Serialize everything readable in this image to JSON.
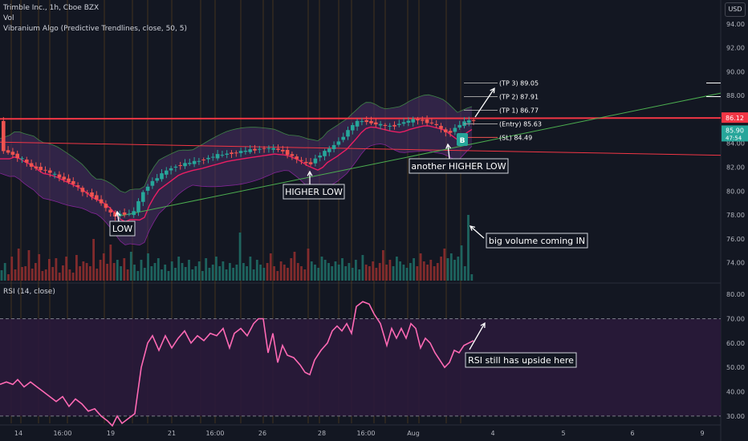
{
  "header": {
    "symbol_line": "Trimble Inc., 1h, Cboe BZX",
    "vol_label": "Vol",
    "indicator_line": "Vibranium Algo (Predictive Trendlines, close, 50, 5)",
    "rsi_label": "RSI (14, close)",
    "currency": "USD"
  },
  "colors": {
    "background": "#131722",
    "up": "#26a69a",
    "down": "#ef5350",
    "resistance": "#f23645",
    "rsi_line": "#ff69b4",
    "band_fill": "#4a2f66",
    "trend": "#4caf50",
    "annotation": "#ffffff"
  },
  "chart_data": [
    {
      "type": "candlestick",
      "title": "Trimble Inc., 1h, Cboe BZX",
      "ylim": [
        72.5,
        96
      ],
      "y_ticks": [
        74.0,
        76.0,
        78.0,
        80.0,
        82.0,
        84.0,
        86.0,
        88.0,
        90.0,
        92.0,
        94.0
      ],
      "x_labels": [
        "14",
        "16:00",
        "19",
        "21",
        "16:00",
        "26",
        "28",
        "16:00",
        "Aug",
        "4",
        "5",
        "6",
        "9"
      ],
      "price_path": [
        [
          0,
          83.2
        ],
        [
          8,
          83.4
        ],
        [
          20,
          82.9
        ],
        [
          30,
          82.6
        ],
        [
          40,
          82.0
        ],
        [
          48,
          81.9
        ],
        [
          58,
          81.7
        ],
        [
          70,
          81.3
        ],
        [
          80,
          81.0
        ],
        [
          92,
          80.6
        ],
        [
          104,
          79.9
        ],
        [
          116,
          79.6
        ],
        [
          128,
          78.9
        ],
        [
          140,
          78.0
        ],
        [
          146,
          77.9
        ],
        [
          152,
          78.2
        ],
        [
          160,
          78.0
        ],
        [
          168,
          78.3
        ],
        [
          176,
          79.6
        ],
        [
          186,
          80.6
        ],
        [
          198,
          81.2
        ],
        [
          212,
          81.9
        ],
        [
          226,
          82.2
        ],
        [
          240,
          82.4
        ],
        [
          256,
          82.7
        ],
        [
          272,
          83.0
        ],
        [
          290,
          83.2
        ],
        [
          310,
          83.4
        ],
        [
          330,
          83.6
        ],
        [
          346,
          83.5
        ],
        [
          360,
          83.1
        ],
        [
          372,
          82.6
        ],
        [
          386,
          82.2
        ],
        [
          396,
          82.9
        ],
        [
          408,
          83.4
        ],
        [
          420,
          84.0
        ],
        [
          432,
          84.9
        ],
        [
          442,
          85.7
        ],
        [
          452,
          85.9
        ],
        [
          464,
          85.7
        ],
        [
          476,
          85.5
        ],
        [
          488,
          85.4
        ],
        [
          500,
          85.7
        ],
        [
          512,
          85.9
        ],
        [
          520,
          86.0
        ],
        [
          532,
          85.8
        ],
        [
          542,
          85.6
        ],
        [
          550,
          85.2
        ],
        [
          558,
          84.8
        ],
        [
          566,
          85.2
        ],
        [
          574,
          85.6
        ],
        [
          584,
          85.9
        ],
        [
          590,
          85.9
        ]
      ],
      "volume_bars": [
        13,
        22,
        8,
        30,
        14,
        40,
        17,
        18,
        38,
        15,
        22,
        33,
        12,
        14,
        27,
        17,
        28,
        10,
        19,
        30,
        14,
        10,
        32,
        18,
        24,
        22,
        18,
        52,
        15,
        26,
        34,
        21,
        45,
        22,
        26,
        18,
        28,
        14,
        36,
        20,
        12,
        26,
        16,
        34,
        18,
        22,
        28,
        14,
        20,
        12,
        24,
        16,
        30,
        22,
        17,
        26,
        14,
        18,
        24,
        12,
        28,
        16,
        20,
        30,
        18,
        24,
        14,
        22,
        16,
        20,
        60,
        22,
        18,
        30,
        14,
        26,
        20,
        16,
        22,
        34,
        18,
        12,
        24,
        20,
        16,
        28,
        36,
        22,
        18,
        14,
        40,
        24,
        20,
        16,
        30,
        26,
        22,
        18,
        24,
        20,
        28,
        18,
        22,
        16,
        26,
        14,
        32,
        20,
        18,
        24,
        16,
        22,
        38,
        20,
        26,
        18,
        30,
        24,
        20,
        16,
        22,
        28,
        18,
        34,
        24,
        20,
        26,
        18,
        22,
        30,
        40,
        28,
        34,
        26,
        30,
        44,
        18,
        82,
        8
      ],
      "annotations": {
        "low": "LOW",
        "higher_low": "HIGHER LOW",
        "another_higher_low": "another HIGHER LOW",
        "big_volume": "big volume coming IN"
      },
      "levels": {
        "tp3": "(TP 3) 89.05",
        "tp2": "(TP 2) 87.91",
        "tp1": "(TP 1) 86.77",
        "entry": "(Entry) 85.63",
        "sl": "(SL) 84.49"
      },
      "price_axis_tags": {
        "resistance": "86.12",
        "last_price": "85.90",
        "countdown": "47:54"
      },
      "buy_marker": "B"
    },
    {
      "type": "line",
      "title": "RSI (14, close)",
      "ylim": [
        27,
        84
      ],
      "y_ticks": [
        30.0,
        40.0,
        50.0,
        60.0,
        70.0,
        80.0
      ],
      "bands": [
        30,
        70
      ],
      "values": [
        [
          0,
          43
        ],
        [
          8,
          44
        ],
        [
          16,
          43
        ],
        [
          22,
          45
        ],
        [
          30,
          42
        ],
        [
          38,
          44
        ],
        [
          46,
          42
        ],
        [
          54,
          40
        ],
        [
          62,
          38
        ],
        [
          70,
          36
        ],
        [
          78,
          38
        ],
        [
          86,
          34
        ],
        [
          94,
          37
        ],
        [
          102,
          35
        ],
        [
          110,
          32
        ],
        [
          118,
          33
        ],
        [
          126,
          30
        ],
        [
          134,
          28
        ],
        [
          140,
          26
        ],
        [
          146,
          30
        ],
        [
          152,
          27
        ],
        [
          160,
          29
        ],
        [
          168,
          31
        ],
        [
          176,
          50
        ],
        [
          184,
          60
        ],
        [
          190,
          63
        ],
        [
          198,
          57
        ],
        [
          206,
          63
        ],
        [
          214,
          58
        ],
        [
          222,
          62
        ],
        [
          230,
          65
        ],
        [
          238,
          60
        ],
        [
          246,
          63
        ],
        [
          254,
          61
        ],
        [
          262,
          64
        ],
        [
          270,
          63
        ],
        [
          278,
          66
        ],
        [
          286,
          58
        ],
        [
          292,
          64
        ],
        [
          300,
          66
        ],
        [
          308,
          63
        ],
        [
          316,
          68
        ],
        [
          322,
          70
        ],
        [
          328,
          70
        ],
        [
          334,
          56
        ],
        [
          340,
          64
        ],
        [
          346,
          52
        ],
        [
          352,
          59
        ],
        [
          358,
          55
        ],
        [
          366,
          54
        ],
        [
          374,
          51
        ],
        [
          380,
          48
        ],
        [
          386,
          47
        ],
        [
          392,
          53
        ],
        [
          400,
          57
        ],
        [
          408,
          60
        ],
        [
          414,
          65
        ],
        [
          420,
          67
        ],
        [
          426,
          65
        ],
        [
          432,
          68
        ],
        [
          438,
          64
        ],
        [
          444,
          75
        ],
        [
          452,
          77
        ],
        [
          460,
          76
        ],
        [
          466,
          72
        ],
        [
          474,
          68
        ],
        [
          482,
          59
        ],
        [
          488,
          66
        ],
        [
          494,
          62
        ],
        [
          500,
          66
        ],
        [
          506,
          62
        ],
        [
          512,
          68
        ],
        [
          518,
          66
        ],
        [
          524,
          58
        ],
        [
          530,
          62
        ],
        [
          536,
          60
        ],
        [
          542,
          56
        ],
        [
          548,
          53
        ],
        [
          554,
          50
        ],
        [
          560,
          52
        ],
        [
          566,
          57
        ],
        [
          572,
          56
        ],
        [
          578,
          59
        ],
        [
          584,
          60
        ],
        [
          590,
          61
        ]
      ],
      "annotation": "RSI still has upside here"
    }
  ]
}
